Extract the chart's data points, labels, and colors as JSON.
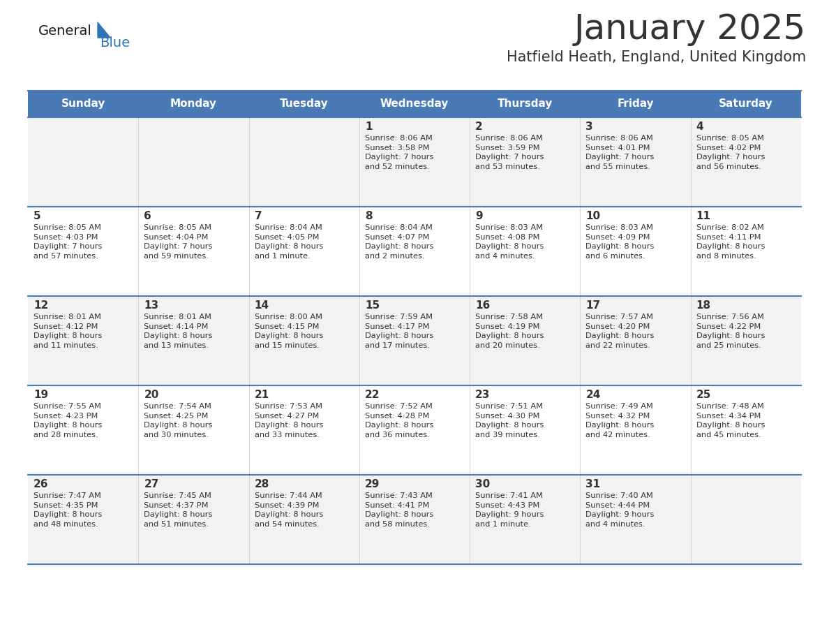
{
  "title": "January 2025",
  "subtitle": "Hatfield Heath, England, United Kingdom",
  "days_of_week": [
    "Sunday",
    "Monday",
    "Tuesday",
    "Wednesday",
    "Thursday",
    "Friday",
    "Saturday"
  ],
  "header_bg": "#4a7ab5",
  "header_text": "#FFFFFF",
  "row_bg_odd": "#F2F2F2",
  "row_bg_even": "#FFFFFF",
  "separator_color": "#4a7ab5",
  "text_color": "#333333",
  "logo_general_color": "#1a1a1a",
  "logo_blue_color": "#2E75B6",
  "calendar_data": [
    [
      {
        "day": null,
        "info": null
      },
      {
        "day": null,
        "info": null
      },
      {
        "day": null,
        "info": null
      },
      {
        "day": 1,
        "info": "Sunrise: 8:06 AM\nSunset: 3:58 PM\nDaylight: 7 hours\nand 52 minutes."
      },
      {
        "day": 2,
        "info": "Sunrise: 8:06 AM\nSunset: 3:59 PM\nDaylight: 7 hours\nand 53 minutes."
      },
      {
        "day": 3,
        "info": "Sunrise: 8:06 AM\nSunset: 4:01 PM\nDaylight: 7 hours\nand 55 minutes."
      },
      {
        "day": 4,
        "info": "Sunrise: 8:05 AM\nSunset: 4:02 PM\nDaylight: 7 hours\nand 56 minutes."
      }
    ],
    [
      {
        "day": 5,
        "info": "Sunrise: 8:05 AM\nSunset: 4:03 PM\nDaylight: 7 hours\nand 57 minutes."
      },
      {
        "day": 6,
        "info": "Sunrise: 8:05 AM\nSunset: 4:04 PM\nDaylight: 7 hours\nand 59 minutes."
      },
      {
        "day": 7,
        "info": "Sunrise: 8:04 AM\nSunset: 4:05 PM\nDaylight: 8 hours\nand 1 minute."
      },
      {
        "day": 8,
        "info": "Sunrise: 8:04 AM\nSunset: 4:07 PM\nDaylight: 8 hours\nand 2 minutes."
      },
      {
        "day": 9,
        "info": "Sunrise: 8:03 AM\nSunset: 4:08 PM\nDaylight: 8 hours\nand 4 minutes."
      },
      {
        "day": 10,
        "info": "Sunrise: 8:03 AM\nSunset: 4:09 PM\nDaylight: 8 hours\nand 6 minutes."
      },
      {
        "day": 11,
        "info": "Sunrise: 8:02 AM\nSunset: 4:11 PM\nDaylight: 8 hours\nand 8 minutes."
      }
    ],
    [
      {
        "day": 12,
        "info": "Sunrise: 8:01 AM\nSunset: 4:12 PM\nDaylight: 8 hours\nand 11 minutes."
      },
      {
        "day": 13,
        "info": "Sunrise: 8:01 AM\nSunset: 4:14 PM\nDaylight: 8 hours\nand 13 minutes."
      },
      {
        "day": 14,
        "info": "Sunrise: 8:00 AM\nSunset: 4:15 PM\nDaylight: 8 hours\nand 15 minutes."
      },
      {
        "day": 15,
        "info": "Sunrise: 7:59 AM\nSunset: 4:17 PM\nDaylight: 8 hours\nand 17 minutes."
      },
      {
        "day": 16,
        "info": "Sunrise: 7:58 AM\nSunset: 4:19 PM\nDaylight: 8 hours\nand 20 minutes."
      },
      {
        "day": 17,
        "info": "Sunrise: 7:57 AM\nSunset: 4:20 PM\nDaylight: 8 hours\nand 22 minutes."
      },
      {
        "day": 18,
        "info": "Sunrise: 7:56 AM\nSunset: 4:22 PM\nDaylight: 8 hours\nand 25 minutes."
      }
    ],
    [
      {
        "day": 19,
        "info": "Sunrise: 7:55 AM\nSunset: 4:23 PM\nDaylight: 8 hours\nand 28 minutes."
      },
      {
        "day": 20,
        "info": "Sunrise: 7:54 AM\nSunset: 4:25 PM\nDaylight: 8 hours\nand 30 minutes."
      },
      {
        "day": 21,
        "info": "Sunrise: 7:53 AM\nSunset: 4:27 PM\nDaylight: 8 hours\nand 33 minutes."
      },
      {
        "day": 22,
        "info": "Sunrise: 7:52 AM\nSunset: 4:28 PM\nDaylight: 8 hours\nand 36 minutes."
      },
      {
        "day": 23,
        "info": "Sunrise: 7:51 AM\nSunset: 4:30 PM\nDaylight: 8 hours\nand 39 minutes."
      },
      {
        "day": 24,
        "info": "Sunrise: 7:49 AM\nSunset: 4:32 PM\nDaylight: 8 hours\nand 42 minutes."
      },
      {
        "day": 25,
        "info": "Sunrise: 7:48 AM\nSunset: 4:34 PM\nDaylight: 8 hours\nand 45 minutes."
      }
    ],
    [
      {
        "day": 26,
        "info": "Sunrise: 7:47 AM\nSunset: 4:35 PM\nDaylight: 8 hours\nand 48 minutes."
      },
      {
        "day": 27,
        "info": "Sunrise: 7:45 AM\nSunset: 4:37 PM\nDaylight: 8 hours\nand 51 minutes."
      },
      {
        "day": 28,
        "info": "Sunrise: 7:44 AM\nSunset: 4:39 PM\nDaylight: 8 hours\nand 54 minutes."
      },
      {
        "day": 29,
        "info": "Sunrise: 7:43 AM\nSunset: 4:41 PM\nDaylight: 8 hours\nand 58 minutes."
      },
      {
        "day": 30,
        "info": "Sunrise: 7:41 AM\nSunset: 4:43 PM\nDaylight: 9 hours\nand 1 minute."
      },
      {
        "day": 31,
        "info": "Sunrise: 7:40 AM\nSunset: 4:44 PM\nDaylight: 9 hours\nand 4 minutes."
      },
      {
        "day": null,
        "info": null
      }
    ]
  ]
}
